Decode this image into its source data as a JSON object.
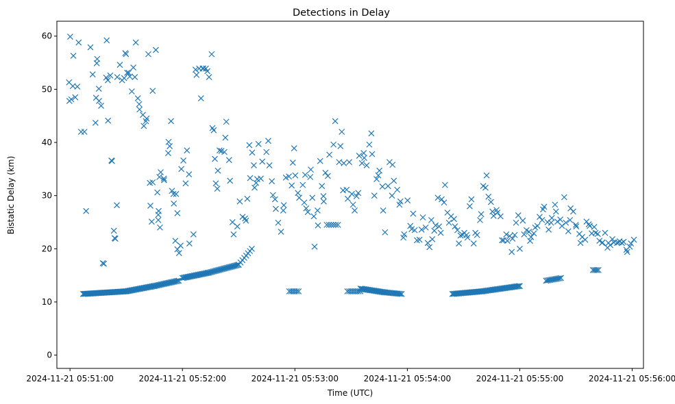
{
  "chart_data": {
    "type": "scatter",
    "title": "Detections in Delay",
    "xlabel": "Time (UTC)",
    "ylabel": "Bistatic Delay (km)",
    "x_unit": "seconds after 2024-11-21 05:51:00",
    "xlim": [
      -7,
      306
    ],
    "ylim": [
      -2.5,
      62.8
    ],
    "xticks": [
      {
        "value": 0,
        "label": "2024-11-21 05:51:00"
      },
      {
        "value": 60,
        "label": "2024-11-21 05:52:00"
      },
      {
        "value": 120,
        "label": "2024-11-21 05:53:00"
      },
      {
        "value": 180,
        "label": "2024-11-21 05:54:00"
      },
      {
        "value": 240,
        "label": "2024-11-21 05:55:00"
      },
      {
        "value": 300,
        "label": "2024-11-21 05:56:00"
      }
    ],
    "yticks": [
      0,
      10,
      20,
      30,
      40,
      50,
      60
    ],
    "grid": false,
    "marker": "x",
    "color": "#1f77b4",
    "tracks": [
      {
        "x0": 7,
        "y0": 11.5,
        "x1": 30,
        "y1": 12.0,
        "n": 48
      },
      {
        "x0": 30,
        "y0": 12.0,
        "x1": 45,
        "y1": 13.0,
        "n": 28
      },
      {
        "x0": 45,
        "y0": 13.0,
        "x1": 58,
        "y1": 14.0,
        "n": 22
      },
      {
        "x0": 60,
        "y0": 14.5,
        "x1": 74,
        "y1": 15.5,
        "n": 26
      },
      {
        "x0": 74,
        "y0": 15.5,
        "x1": 90,
        "y1": 17.0,
        "n": 26
      },
      {
        "x0": 90,
        "y0": 17.0,
        "x1": 97,
        "y1": 20.0,
        "n": 8
      },
      {
        "x0": 117,
        "y0": 12.0,
        "x1": 122,
        "y1": 12.0,
        "n": 6
      },
      {
        "x0": 137,
        "y0": 24.5,
        "x1": 143,
        "y1": 24.5,
        "n": 6
      },
      {
        "x0": 148,
        "y0": 12.0,
        "x1": 155,
        "y1": 12.0,
        "n": 8
      },
      {
        "x0": 155,
        "y0": 12.5,
        "x1": 168,
        "y1": 11.8,
        "n": 24
      },
      {
        "x0": 168,
        "y0": 11.8,
        "x1": 177,
        "y1": 11.5,
        "n": 14
      },
      {
        "x0": 204,
        "y0": 11.5,
        "x1": 220,
        "y1": 12.0,
        "n": 28
      },
      {
        "x0": 220,
        "y0": 12.0,
        "x1": 240,
        "y1": 13.0,
        "n": 34
      },
      {
        "x0": 254,
        "y0": 14.0,
        "x1": 262,
        "y1": 14.5,
        "n": 12
      },
      {
        "x0": 279,
        "y0": 16.0,
        "x1": 282,
        "y1": 16.0,
        "n": 5
      }
    ],
    "scatter_points": [
      [
        0.1,
        59.9
      ],
      [
        1.8,
        56.3
      ],
      [
        -0.5,
        51.3
      ],
      [
        0.7,
        48.1
      ],
      [
        -0.3,
        47.8
      ],
      [
        1.5,
        50.6
      ],
      [
        2.8,
        48.5
      ],
      [
        3.9,
        50.5
      ],
      [
        4.6,
        58.8
      ],
      [
        5.9,
        42.0
      ],
      [
        7.7,
        42.0
      ],
      [
        8.6,
        27.1
      ],
      [
        10.9,
        57.9
      ],
      [
        12.1,
        52.8
      ],
      [
        13.6,
        43.7
      ],
      [
        13.9,
        48.4
      ],
      [
        14.3,
        54.9
      ],
      [
        14.5,
        55.7
      ],
      [
        15.4,
        50.1
      ],
      [
        15.5,
        47.8
      ],
      [
        16.6,
        46.9
      ],
      [
        17.5,
        17.3
      ],
      [
        18.1,
        17.2
      ],
      [
        19.6,
        59.2
      ],
      [
        20.3,
        44.1
      ],
      [
        19.3,
        52.2
      ],
      [
        20.2,
        51.7
      ],
      [
        21.5,
        52.6
      ],
      [
        22.1,
        36.6
      ],
      [
        22.4,
        36.5
      ],
      [
        23.4,
        23.4
      ],
      [
        23.8,
        22.0
      ],
      [
        24.2,
        21.9
      ],
      [
        25.0,
        28.2
      ],
      [
        25.2,
        52.3
      ],
      [
        26.6,
        54.6
      ],
      [
        27.8,
        51.7
      ],
      [
        28.9,
        52.1
      ],
      [
        29.5,
        56.8
      ],
      [
        29.9,
        56.6
      ],
      [
        30.5,
        53.1
      ],
      [
        31.3,
        53.1
      ],
      [
        31.9,
        52.4
      ],
      [
        33.0,
        49.6
      ],
      [
        33.8,
        54.1
      ],
      [
        34.6,
        52.3
      ],
      [
        35.1,
        58.8
      ],
      [
        36.2,
        48.3
      ],
      [
        36.9,
        47.2
      ],
      [
        37.1,
        46.2
      ],
      [
        38.9,
        45.2
      ],
      [
        39.4,
        43.1
      ],
      [
        40.5,
        44.0
      ],
      [
        40.9,
        44.5
      ],
      [
        41.8,
        56.6
      ],
      [
        44.1,
        49.7
      ],
      [
        45.8,
        57.4
      ],
      [
        42.6,
        32.4
      ],
      [
        44.1,
        32.5
      ],
      [
        42.9,
        28.1
      ],
      [
        43.6,
        25.1
      ],
      [
        46.6,
        30.6
      ],
      [
        48.4,
        34.4
      ],
      [
        47.7,
        33.5
      ],
      [
        47.3,
        27.1
      ],
      [
        47.1,
        26.4
      ],
      [
        47.1,
        25.4
      ],
      [
        48.0,
        24.0
      ],
      [
        50.1,
        33.2
      ],
      [
        50.2,
        32.9
      ],
      [
        52.4,
        38.0
      ],
      [
        52.6,
        40.1
      ],
      [
        53.2,
        39.3
      ],
      [
        53.9,
        44.0
      ],
      [
        54.4,
        30.9
      ],
      [
        55.2,
        30.3
      ],
      [
        55.4,
        28.5
      ],
      [
        56.6,
        30.3
      ],
      [
        57.3,
        26.7
      ],
      [
        56.2,
        21.5
      ],
      [
        57.3,
        19.9
      ],
      [
        58.2,
        19.2
      ],
      [
        59.0,
        20.6
      ],
      [
        59.4,
        35.0
      ],
      [
        60.5,
        36.6
      ],
      [
        61.7,
        32.3
      ],
      [
        62.4,
        38.5
      ],
      [
        63.5,
        34.0
      ],
      [
        63.7,
        21.0
      ],
      [
        65.9,
        22.7
      ],
      [
        67.0,
        53.7
      ],
      [
        67.5,
        52.7
      ],
      [
        68.9,
        53.9
      ],
      [
        69.9,
        48.3
      ],
      [
        70.8,
        53.9
      ],
      [
        71.1,
        53.9
      ],
      [
        72.5,
        53.9
      ],
      [
        73.3,
        53.4
      ],
      [
        74.2,
        52.3
      ],
      [
        75.6,
        56.6
      ],
      [
        76.0,
        42.7
      ],
      [
        76.7,
        42.3
      ],
      [
        77.3,
        36.9
      ],
      [
        77.8,
        32.3
      ],
      [
        78.6,
        31.3
      ],
      [
        78.9,
        34.7
      ],
      [
        79.8,
        38.5
      ],
      [
        80.8,
        38.4
      ],
      [
        82.4,
        38.2
      ],
      [
        82.9,
        40.9
      ],
      [
        83.4,
        43.9
      ],
      [
        84.9,
        36.7
      ],
      [
        85.4,
        32.8
      ],
      [
        86.7,
        25.0
      ],
      [
        87.3,
        22.7
      ],
      [
        89.3,
        24.2
      ],
      [
        90.6,
        28.9
      ],
      [
        92.1,
        26.0
      ],
      [
        93.4,
        25.7
      ],
      [
        93.9,
        25.3
      ],
      [
        94.6,
        29.4
      ],
      [
        95.7,
        39.5
      ],
      [
        96.1,
        33.3
      ],
      [
        97.2,
        38.1
      ],
      [
        98.1,
        35.7
      ],
      [
        98.5,
        31.5
      ],
      [
        99.3,
        32.4
      ],
      [
        99.9,
        33.1
      ],
      [
        100.6,
        39.7
      ],
      [
        101.8,
        33.2
      ],
      [
        102.6,
        36.4
      ],
      [
        104.8,
        38.2
      ],
      [
        105.8,
        40.3
      ],
      [
        106.4,
        35.7
      ],
      [
        107.7,
        32.7
      ],
      [
        108.3,
        30.1
      ],
      [
        109.4,
        29.3
      ],
      [
        109.8,
        27.5
      ],
      [
        111.1,
        24.9
      ],
      [
        112.6,
        23.2
      ],
      [
        113.8,
        27.2
      ],
      [
        114.1,
        28.2
      ],
      [
        115.2,
        33.4
      ],
      [
        116.8,
        33.6
      ],
      [
        118.3,
        31.9
      ],
      [
        118.9,
        36.2
      ],
      [
        119.6,
        38.9
      ],
      [
        120.2,
        33.8
      ],
      [
        121.6,
        30.5
      ],
      [
        122.3,
        29.6
      ],
      [
        124.2,
        32.0
      ],
      [
        125.0,
        28.7
      ],
      [
        125.5,
        33.9
      ],
      [
        126.0,
        27.6
      ],
      [
        126.9,
        26.9
      ],
      [
        128.2,
        33.5
      ],
      [
        128.5,
        34.9
      ],
      [
        129.3,
        29.6
      ],
      [
        130.1,
        26.1
      ],
      [
        130.5,
        20.4
      ],
      [
        132.1,
        27.2
      ],
      [
        132.3,
        24.4
      ],
      [
        133.5,
        36.5
      ],
      [
        134.4,
        31.8
      ],
      [
        135.4,
        28.9
      ],
      [
        135.2,
        29.9
      ],
      [
        136.3,
        34.3
      ],
      [
        137.6,
        33.7
      ],
      [
        138.4,
        37.7
      ],
      [
        140.6,
        39.6
      ],
      [
        141.5,
        44.0
      ],
      [
        143.6,
        36.3
      ],
      [
        144.3,
        39.3
      ],
      [
        145.0,
        42.0
      ],
      [
        145.7,
        31.0
      ],
      [
        146.1,
        36.1
      ],
      [
        147.6,
        31.1
      ],
      [
        148.2,
        29.4
      ],
      [
        149.0,
        36.3
      ],
      [
        150.4,
        30.3
      ],
      [
        151.0,
        28.3
      ],
      [
        151.9,
        27.2
      ],
      [
        152.9,
        29.9
      ],
      [
        153.8,
        30.5
      ],
      [
        154.3,
        37.5
      ],
      [
        155.8,
        36.1
      ],
      [
        156.7,
        38.0
      ],
      [
        157.0,
        37.1
      ],
      [
        158.3,
        35.7
      ],
      [
        159.7,
        39.6
      ],
      [
        160.8,
        41.7
      ],
      [
        161.2,
        37.8
      ],
      [
        162.4,
        30.0
      ],
      [
        163.6,
        33.1
      ],
      [
        164.5,
        33.8
      ],
      [
        165.1,
        34.7
      ],
      [
        166.7,
        31.7
      ],
      [
        167.1,
        27.2
      ],
      [
        168.1,
        23.1
      ],
      [
        169.7,
        31.8
      ],
      [
        170.5,
        36.3
      ],
      [
        171.8,
        30.0
      ],
      [
        172.1,
        35.8
      ],
      [
        172.8,
        32.8
      ],
      [
        174.6,
        31.1
      ],
      [
        175.8,
        28.3
      ],
      [
        176.3,
        28.9
      ],
      [
        177.9,
        22.1
      ],
      [
        178.3,
        22.7
      ],
      [
        180.1,
        29.1
      ],
      [
        181.6,
        24.3
      ],
      [
        182.3,
        23.7
      ],
      [
        183.1,
        26.6
      ],
      [
        183.9,
        23.5
      ],
      [
        185.1,
        21.6
      ],
      [
        186.5,
        21.7
      ],
      [
        187.6,
        23.6
      ],
      [
        188.3,
        25.9
      ],
      [
        189.8,
        24.0
      ],
      [
        190.9,
        21.1
      ],
      [
        191.8,
        20.3
      ],
      [
        192.8,
        25.4
      ],
      [
        193.3,
        21.8
      ],
      [
        194.4,
        23.4
      ],
      [
        195.1,
        24.4
      ],
      [
        196.3,
        29.6
      ],
      [
        196.9,
        24.2
      ],
      [
        197.8,
        23.0
      ],
      [
        198.3,
        29.3
      ],
      [
        199.6,
        28.7
      ],
      [
        200.1,
        32.0
      ],
      [
        201.4,
        26.8
      ],
      [
        202.2,
        24.9
      ],
      [
        203.3,
        26.1
      ],
      [
        204.9,
        25.6
      ],
      [
        205.4,
        24.2
      ],
      [
        206.7,
        23.5
      ],
      [
        207.5,
        21.0
      ],
      [
        208.4,
        22.5
      ],
      [
        209.5,
        22.6
      ],
      [
        210.4,
        23.0
      ],
      [
        211.6,
        22.6
      ],
      [
        212.1,
        22.1
      ],
      [
        213.3,
        28.0
      ],
      [
        214.2,
        29.3
      ],
      [
        215.4,
        21.0
      ],
      [
        216.3,
        23.0
      ],
      [
        217.2,
        22.6
      ],
      [
        218.8,
        25.4
      ],
      [
        219.4,
        26.5
      ],
      [
        220.5,
        31.8
      ],
      [
        221.7,
        31.5
      ],
      [
        222.3,
        33.8
      ],
      [
        223.3,
        29.8
      ],
      [
        224.6,
        28.8
      ],
      [
        225.4,
        27.0
      ],
      [
        226.0,
        26.2
      ],
      [
        227.6,
        27.3
      ],
      [
        228.1,
        26.8
      ],
      [
        229.7,
        26.1
      ],
      [
        230.5,
        21.6
      ],
      [
        231.3,
        21.6
      ],
      [
        232.8,
        22.7
      ],
      [
        233.4,
        21.5
      ],
      [
        234.6,
        22.4
      ],
      [
        235.7,
        19.4
      ],
      [
        236.1,
        21.9
      ],
      [
        237.3,
        22.6
      ],
      [
        238.0,
        24.9
      ],
      [
        239.2,
        26.3
      ],
      [
        240.0,
        20.0
      ],
      [
        241.6,
        25.3
      ],
      [
        242.3,
        22.7
      ],
      [
        243.6,
        23.5
      ],
      [
        244.9,
        23.2
      ],
      [
        245.5,
        21.5
      ],
      [
        246.0,
        22.2
      ],
      [
        247.5,
        22.9
      ],
      [
        248.2,
        24.0
      ],
      [
        249.4,
        24.3
      ],
      [
        250.6,
        26.0
      ],
      [
        251.9,
        25.4
      ],
      [
        252.4,
        27.4
      ],
      [
        253.0,
        27.9
      ],
      [
        254.8,
        25.0
      ],
      [
        255.4,
        23.6
      ],
      [
        256.7,
        24.9
      ],
      [
        257.1,
        25.8
      ],
      [
        258.8,
        28.3
      ],
      [
        259.3,
        27.0
      ],
      [
        260.1,
        25.1
      ],
      [
        261.6,
        25.5
      ],
      [
        262.5,
        24.3
      ],
      [
        263.7,
        29.7
      ],
      [
        264.6,
        24.9
      ],
      [
        265.9,
        23.3
      ],
      [
        266.8,
        25.4
      ],
      [
        267.1,
        27.6
      ],
      [
        268.5,
        27.0
      ],
      [
        269.9,
        24.5
      ],
      [
        270.1,
        24.2
      ],
      [
        271.8,
        22.8
      ],
      [
        272.4,
        21.1
      ],
      [
        273.3,
        22.2
      ],
      [
        274.9,
        21.7
      ],
      [
        275.6,
        25.1
      ],
      [
        276.8,
        24.6
      ],
      [
        277.3,
        24.3
      ],
      [
        278.4,
        22.9
      ],
      [
        279.7,
        24.1
      ],
      [
        280.4,
        23.0
      ],
      [
        281.6,
        22.8
      ],
      [
        282.5,
        21.5
      ],
      [
        283.9,
        21.1
      ],
      [
        284.1,
        21.2
      ],
      [
        285.5,
        23.0
      ],
      [
        286.8,
        20.2
      ],
      [
        287.3,
        21.1
      ],
      [
        288.3,
        20.7
      ],
      [
        289.4,
        21.8
      ],
      [
        290.2,
        21.2
      ],
      [
        291.9,
        21.1
      ],
      [
        292.6,
        21.2
      ],
      [
        293.3,
        21.4
      ],
      [
        294.5,
        21.1
      ],
      [
        295.4,
        21.3
      ],
      [
        296.9,
        19.8
      ],
      [
        297.3,
        19.4
      ],
      [
        298.7,
        20.4
      ],
      [
        299.3,
        21.0
      ],
      [
        300.9,
        21.7
      ]
    ]
  }
}
